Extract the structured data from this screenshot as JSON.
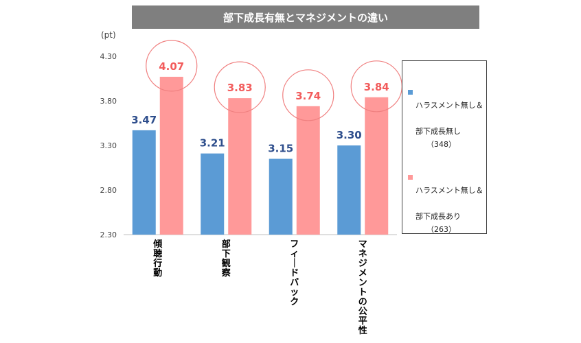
{
  "chart_data": {
    "type": "bar",
    "title": "部下成長有無とマネジメントの違い",
    "unit": "(pt)",
    "categories": [
      "傾聴行動",
      "部下観察",
      "フィードバック",
      "マネジメントの公平性"
    ],
    "ylim": [
      2.3,
      4.3
    ],
    "yticks": [
      "2.30",
      "2.80",
      "3.30",
      "3.80",
      "4.30"
    ],
    "ytick_values": [
      2.3,
      2.8,
      3.3,
      3.8,
      4.3
    ],
    "grid": false,
    "legend_position": "right",
    "series": [
      {
        "name": "ハラスメント無し＆部下成長無し",
        "name_line1": "ハラスメント無し＆",
        "name_line2": "部下成長無し",
        "count": "（348）",
        "color": "#5b9bd5",
        "label_color": "#2e4e8c",
        "values": [
          3.47,
          3.21,
          3.15,
          3.3
        ],
        "labels": [
          "3.47",
          "3.21",
          "3.15",
          "3.30"
        ],
        "highlight": false
      },
      {
        "name": "ハラスメント無し＆部下成長あり",
        "name_line1": "ハラスメント無し＆",
        "name_line2": "部下成長あり",
        "count": "（263）",
        "color": "#ff9999",
        "label_color": "#f25c5c",
        "values": [
          4.07,
          3.83,
          3.74,
          3.84
        ],
        "labels": [
          "4.07",
          "3.83",
          "3.74",
          "3.84"
        ],
        "highlight": true,
        "highlight_color": "#f08080"
      }
    ]
  }
}
